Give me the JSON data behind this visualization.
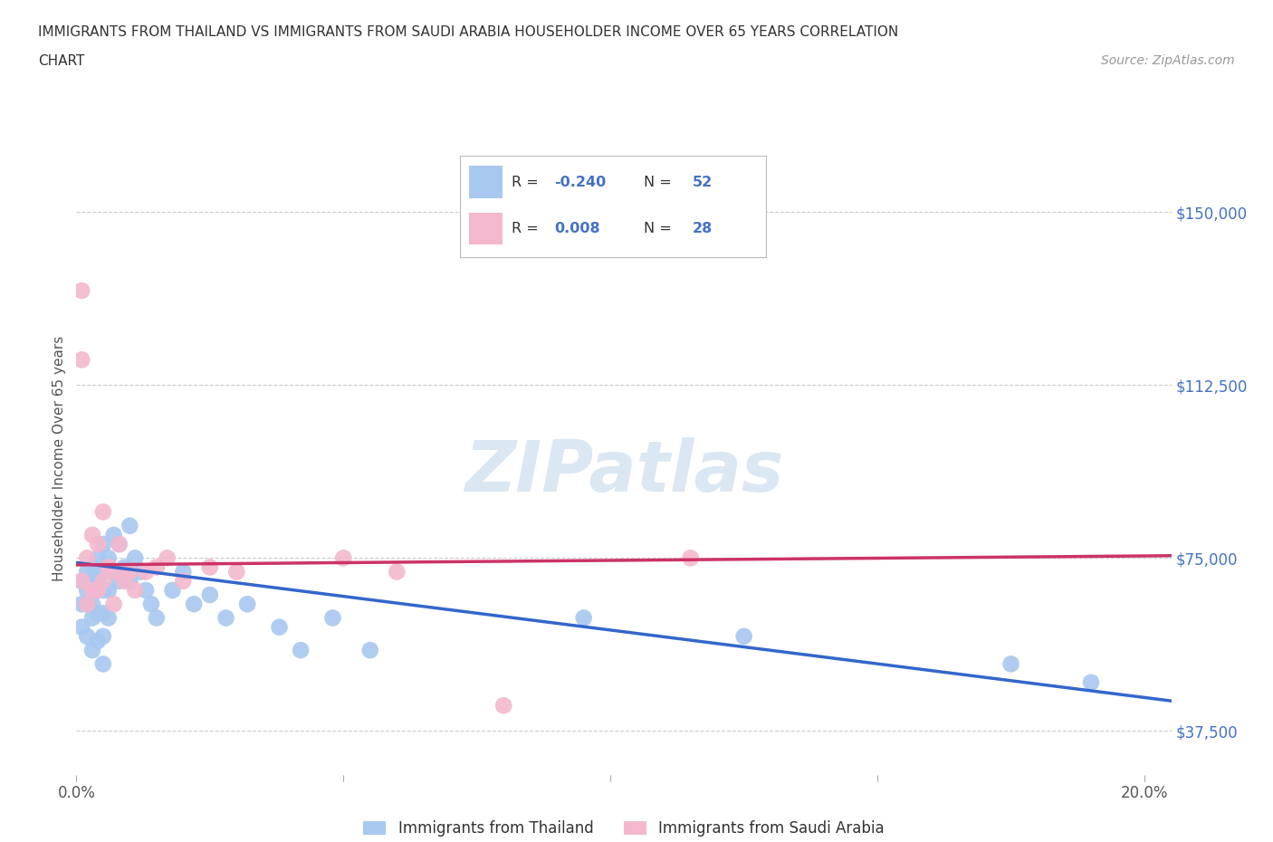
{
  "title_line1": "IMMIGRANTS FROM THAILAND VS IMMIGRANTS FROM SAUDI ARABIA HOUSEHOLDER INCOME OVER 65 YEARS CORRELATION",
  "title_line2": "CHART",
  "source_text": "Source: ZipAtlas.com",
  "watermark": "ZIPatlas",
  "ylabel": "Householder Income Over 65 years",
  "xlim": [
    0.0,
    0.205
  ],
  "ylim": [
    28000,
    165000
  ],
  "yticks": [
    37500,
    75000,
    112500,
    150000
  ],
  "ytick_labels": [
    "$37,500",
    "$75,000",
    "$112,500",
    "$150,000"
  ],
  "xticks": [
    0.0,
    0.05,
    0.1,
    0.15,
    0.2
  ],
  "xtick_labels": [
    "0.0%",
    "",
    "",
    "",
    "20.0%"
  ],
  "color_thailand": "#a8c8f0",
  "color_saudi": "#f4b8ce",
  "line_color_thailand": "#3366cc",
  "line_color_saudi": "#cc3366",
  "background_color": "#ffffff",
  "grid_color": "#cccccc",
  "axis_label_color": "#4472c4",
  "title_color": "#333333",
  "thailand_x": [
    0.001,
    0.001,
    0.001,
    0.002,
    0.002,
    0.002,
    0.002,
    0.003,
    0.003,
    0.003,
    0.003,
    0.003,
    0.004,
    0.004,
    0.004,
    0.004,
    0.004,
    0.005,
    0.005,
    0.005,
    0.005,
    0.005,
    0.005,
    0.006,
    0.006,
    0.006,
    0.007,
    0.007,
    0.008,
    0.008,
    0.009,
    0.01,
    0.01,
    0.011,
    0.012,
    0.013,
    0.014,
    0.015,
    0.018,
    0.02,
    0.022,
    0.025,
    0.028,
    0.032,
    0.038,
    0.042,
    0.048,
    0.055,
    0.095,
    0.125,
    0.175,
    0.19
  ],
  "thailand_y": [
    70000,
    65000,
    60000,
    72000,
    68000,
    65000,
    58000,
    73000,
    70000,
    65000,
    62000,
    55000,
    75000,
    70000,
    68000,
    63000,
    57000,
    78000,
    72000,
    68000,
    63000,
    58000,
    52000,
    75000,
    68000,
    62000,
    80000,
    72000,
    78000,
    70000,
    73000,
    82000,
    70000,
    75000,
    72000,
    68000,
    65000,
    62000,
    68000,
    72000,
    65000,
    67000,
    62000,
    65000,
    60000,
    55000,
    62000,
    55000,
    62000,
    58000,
    52000,
    48000
  ],
  "saudi_x": [
    0.001,
    0.001,
    0.001,
    0.002,
    0.002,
    0.003,
    0.003,
    0.004,
    0.004,
    0.005,
    0.005,
    0.006,
    0.007,
    0.007,
    0.008,
    0.009,
    0.01,
    0.011,
    0.013,
    0.015,
    0.017,
    0.02,
    0.025,
    0.03,
    0.05,
    0.06,
    0.08,
    0.115
  ],
  "saudi_y": [
    133000,
    118000,
    70000,
    75000,
    65000,
    80000,
    68000,
    78000,
    68000,
    85000,
    70000,
    73000,
    72000,
    65000,
    78000,
    70000,
    72000,
    68000,
    72000,
    73000,
    75000,
    70000,
    73000,
    72000,
    75000,
    72000,
    43000,
    75000
  ],
  "th_line_x0": 0.0,
  "th_line_x1": 0.205,
  "th_line_y0": 74000,
  "th_line_y1": 44000,
  "sa_line_x0": 0.0,
  "sa_line_x1": 0.205,
  "sa_line_y0": 73500,
  "sa_line_y1": 75500
}
